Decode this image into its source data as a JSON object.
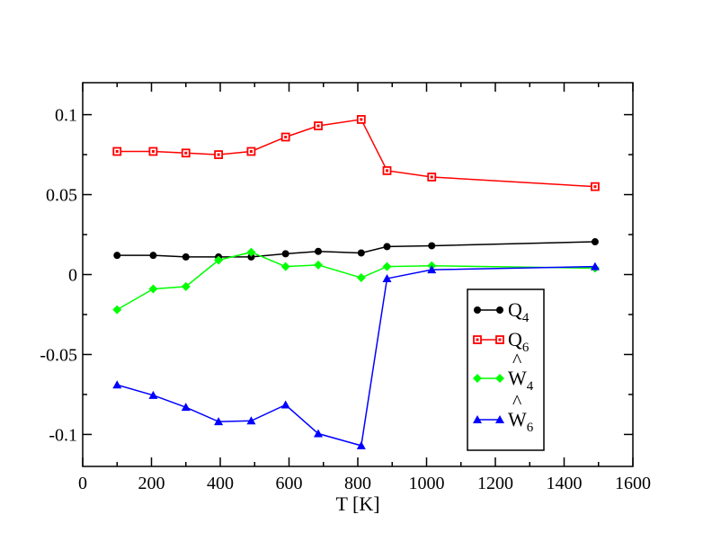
{
  "chart_data": {
    "type": "line",
    "xlabel": "T [K]",
    "ylabel": "",
    "xlim": [
      0,
      1600
    ],
    "ylim": [
      -0.12,
      0.12
    ],
    "xticks": [
      0,
      200,
      400,
      600,
      800,
      1000,
      1200,
      1400,
      1600
    ],
    "yticks": [
      -0.1,
      -0.05,
      0,
      0.05,
      0.1
    ],
    "xtick_labels": [
      "0",
      "200",
      "400",
      "600",
      "800",
      "1000",
      "1200",
      "1400",
      "1600"
    ],
    "ytick_labels": [
      "-0.1",
      "-0.05",
      "0",
      "0.05",
      "0.1"
    ],
    "grid": false,
    "legend_position": "bottom-right",
    "x": [
      100,
      205,
      300,
      395,
      490,
      590,
      685,
      810,
      885,
      1015,
      1490
    ],
    "series": [
      {
        "name": "Q4",
        "legend_main": "Q",
        "legend_sub": "4",
        "legend_hat": false,
        "color": "#000000",
        "marker": "circle",
        "values": [
          0.012,
          0.012,
          0.011,
          0.011,
          0.011,
          0.013,
          0.0145,
          0.0135,
          0.0175,
          0.018,
          0.0205
        ]
      },
      {
        "name": "Q6",
        "legend_main": "Q",
        "legend_sub": "6",
        "legend_hat": false,
        "color": "#ff0000",
        "marker": "square",
        "values": [
          0.077,
          0.077,
          0.076,
          0.075,
          0.077,
          0.086,
          0.093,
          0.097,
          0.065,
          0.061,
          0.055
        ]
      },
      {
        "name": "Ŵ4",
        "legend_main": "W",
        "legend_sub": "4",
        "legend_hat": true,
        "color": "#00ff00",
        "marker": "diamond",
        "values": [
          -0.022,
          -0.009,
          -0.0075,
          0.009,
          0.014,
          0.005,
          0.006,
          -0.002,
          0.005,
          0.0055,
          0.004
        ]
      },
      {
        "name": "Ŵ6",
        "legend_main": "W",
        "legend_sub": "6",
        "legend_hat": true,
        "color": "#0000ff",
        "marker": "triangle",
        "values": [
          -0.069,
          -0.0755,
          -0.083,
          -0.092,
          -0.0915,
          -0.0815,
          -0.0995,
          -0.107,
          -0.0025,
          0.003,
          0.005
        ]
      }
    ]
  }
}
